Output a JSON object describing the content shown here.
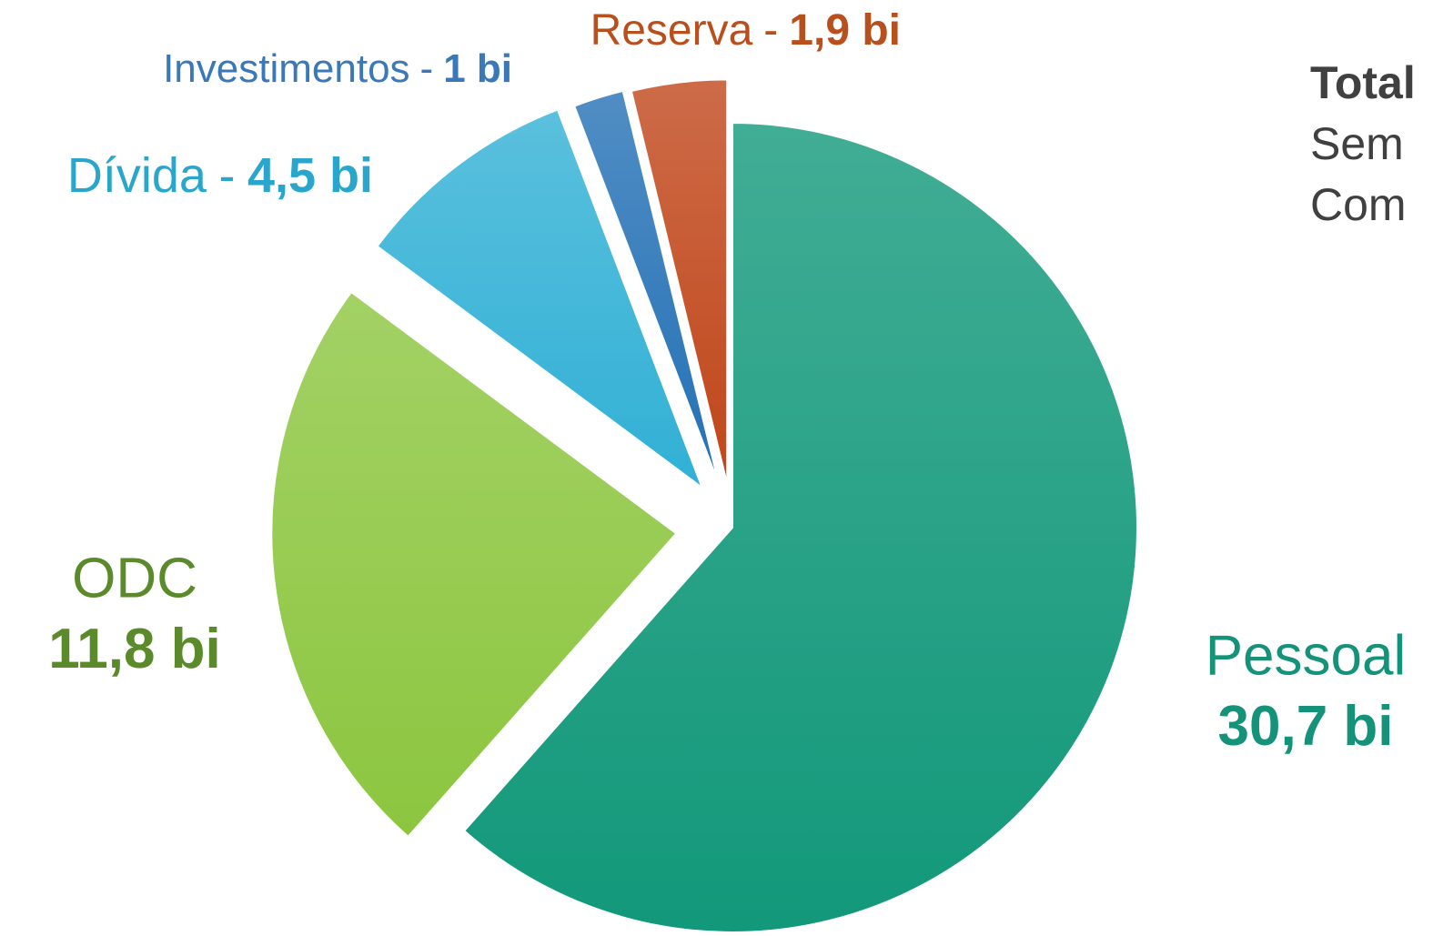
{
  "chart_data": {
    "type": "pie",
    "categories": [
      "Pessoal",
      "ODC",
      "Dívida",
      "Investimentos",
      "Reserva"
    ],
    "values": [
      30.7,
      11.8,
      4.5,
      1,
      1.9
    ],
    "value_labels": [
      "30,7 bi",
      "11,8 bi",
      "4,5 bi",
      "1 bi",
      "1,9 bi"
    ],
    "colors": [
      "#12987a",
      "#8cc63f",
      "#31b0d5",
      "#2471b5",
      "#c0461a"
    ],
    "label_colors": [
      "#14927a",
      "#5a8a2a",
      "#2aa6cc",
      "#3a78b8",
      "#b8501e"
    ],
    "label_separator": "-",
    "side_text": [
      "Total",
      "Sem",
      "Com"
    ]
  }
}
